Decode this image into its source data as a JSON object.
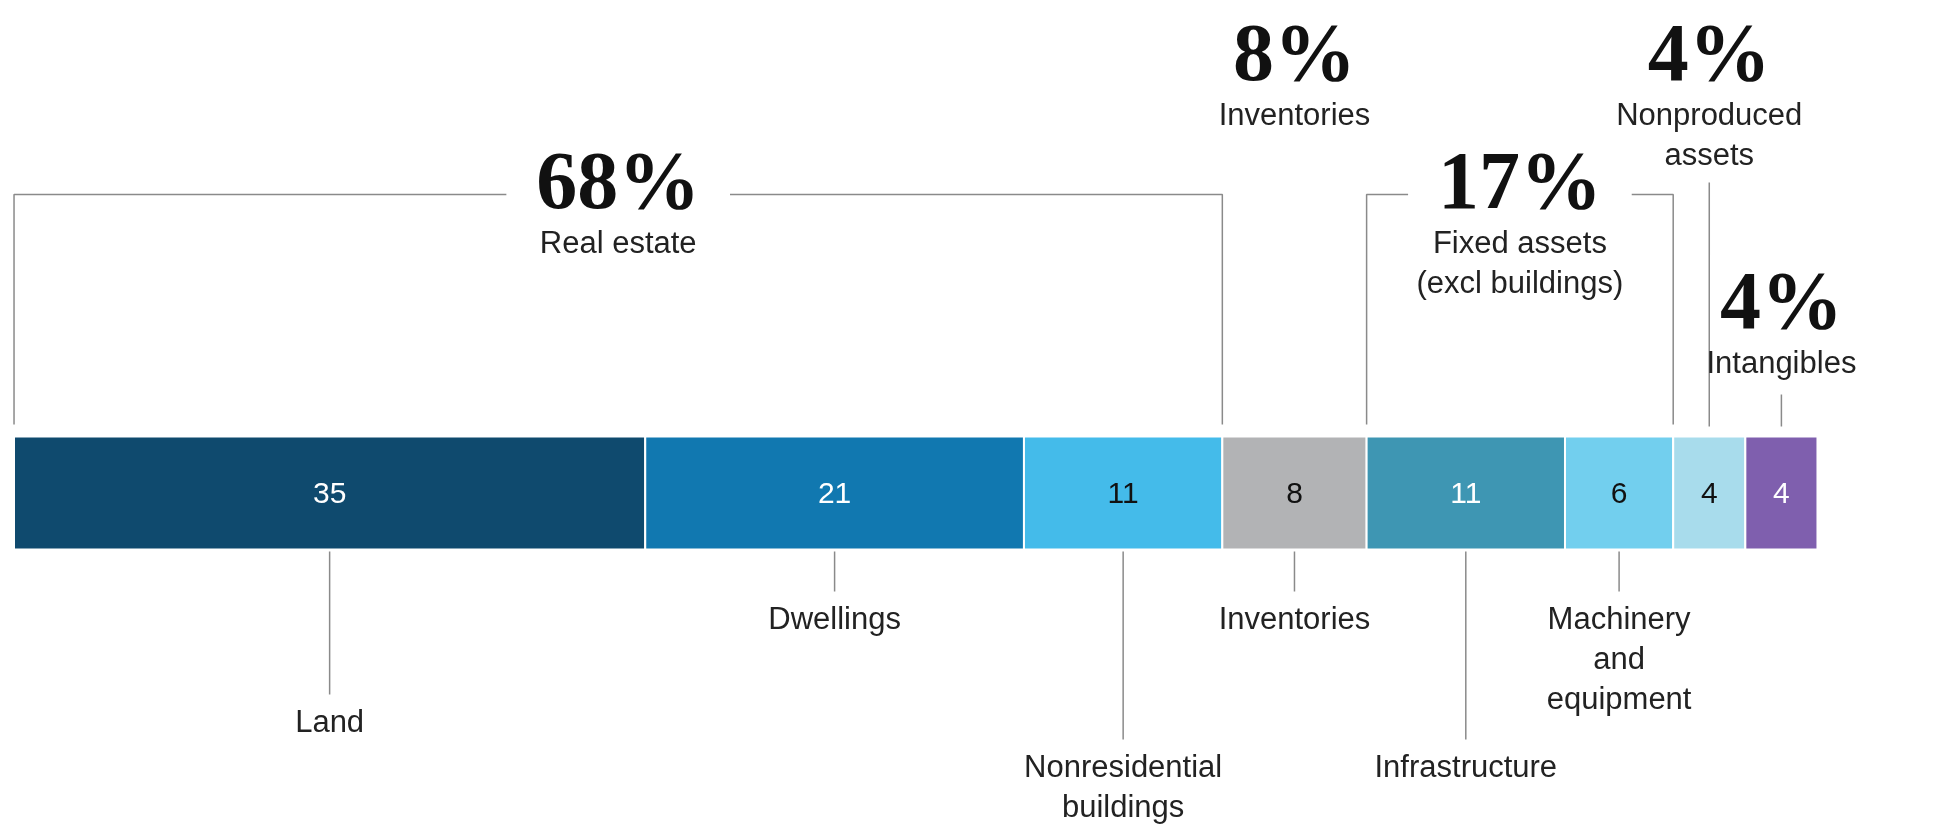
{
  "chart_data": {
    "type": "bar",
    "orientation": "horizontal",
    "stacked": true,
    "data_labels": true,
    "categories": [
      null
    ],
    "series": [
      {
        "name": "Land",
        "color": "#0f4a6e",
        "values": [
          35
        ]
      },
      {
        "name": "Dwellings",
        "color": "#1178b0",
        "values": [
          21
        ]
      },
      {
        "name": "Nonresidential\nbuildings",
        "color": "#44bbea",
        "values": [
          11
        ]
      },
      {
        "name": "Inventories",
        "color": "#b2b3b5",
        "values": [
          8
        ]
      },
      {
        "name": "Infrastructure",
        "color": "#3e96b3",
        "values": [
          11
        ]
      },
      {
        "name": "Machinery\nand\nequipment",
        "color": "#72cfee",
        "values": [
          6
        ]
      },
      {
        "color": "#a8dcec",
        "values": [
          4
        ]
      },
      {
        "color": "#7f5fae",
        "values": [
          4
        ]
      }
    ],
    "annotations": [
      "68%\nReal estate",
      "8%\nInventories",
      "17%\nFixed assets\n(excl buildings)",
      "4%\nNonproduced\nassets",
      "4%\nIntangibles"
    ]
  }
}
